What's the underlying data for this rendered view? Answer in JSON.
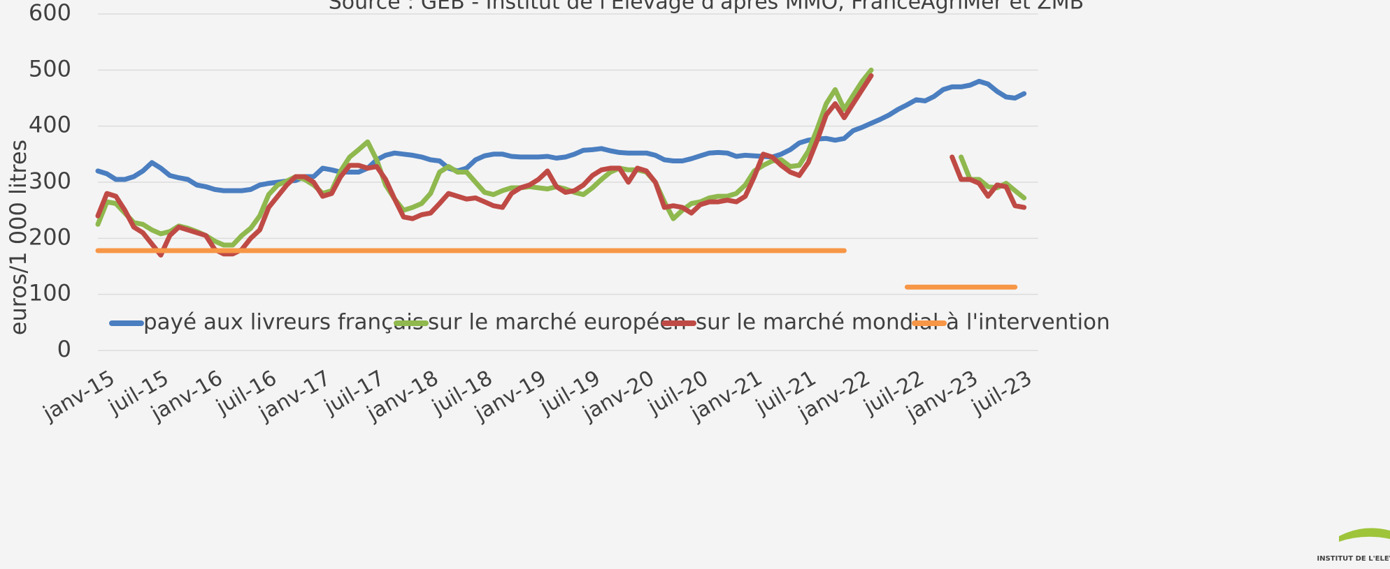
{
  "chart_data": {
    "type": "line",
    "subtitle": "Source : GEB - Institut de l'Elevage d'après MMO, FranceAgriMer et ZMB",
    "y_label": "euros/1 000 litres",
    "logo": "INSTITUT DE L'ELEVAGE",
    "ylim": [
      0,
      600
    ],
    "yticks": [
      0,
      100,
      200,
      300,
      400,
      500,
      600
    ],
    "grid": true,
    "legend": "inside-bottom",
    "categories": [
      "janv-15",
      null,
      null,
      null,
      null,
      null,
      "juil-15",
      null,
      null,
      null,
      null,
      null,
      "janv-16",
      null,
      null,
      null,
      null,
      null,
      "juil-16",
      null,
      null,
      null,
      null,
      null,
      "janv-17",
      null,
      null,
      null,
      null,
      null,
      "juil-17",
      null,
      null,
      null,
      null,
      null,
      "janv-18",
      null,
      null,
      null,
      null,
      null,
      "juil-18",
      null,
      null,
      null,
      null,
      null,
      "janv-19",
      null,
      null,
      null,
      null,
      null,
      "juil-19",
      null,
      null,
      null,
      null,
      null,
      "janv-20",
      null,
      null,
      null,
      null,
      null,
      "juil-20",
      null,
      null,
      null,
      null,
      null,
      "janv-21",
      null,
      null,
      null,
      null,
      null,
      "juil-21",
      null,
      null,
      null,
      null,
      null,
      "janv-22",
      null,
      null,
      null,
      null,
      null,
      "juil-22",
      null,
      null,
      null,
      null,
      null,
      "janv-23",
      null,
      null,
      null,
      null,
      null,
      "juil-23",
      null
    ],
    "series": [
      {
        "name": "payé aux livreurs français",
        "color": "#4a7ec0",
        "values": [
          320,
          315,
          305,
          305,
          310,
          320,
          335,
          325,
          312,
          308,
          305,
          295,
          292,
          287,
          285,
          285,
          285,
          287,
          295,
          298,
          300,
          302,
          303,
          310,
          310,
          325,
          322,
          318,
          318,
          318,
          325,
          340,
          348,
          352,
          350,
          348,
          345,
          340,
          338,
          325,
          320,
          325,
          340,
          347,
          350,
          350,
          346,
          345,
          345,
          345,
          346,
          343,
          345,
          350,
          357,
          358,
          360,
          356,
          353,
          352,
          352,
          352,
          348,
          340,
          338,
          338,
          342,
          347,
          352,
          353,
          352,
          346,
          348,
          347,
          346,
          345,
          350,
          358,
          370,
          375,
          377,
          378,
          375,
          378,
          392,
          398,
          405,
          412,
          420,
          430,
          438,
          447,
          445,
          453,
          465,
          470,
          470,
          473,
          480,
          475,
          462,
          452,
          450,
          458
        ]
      },
      {
        "name": "sur le marché européen",
        "color": "#8fb84e",
        "values": [
          225,
          265,
          262,
          245,
          228,
          225,
          215,
          208,
          212,
          222,
          218,
          212,
          205,
          195,
          188,
          188,
          205,
          218,
          240,
          278,
          295,
          302,
          310,
          305,
          295,
          280,
          285,
          320,
          345,
          358,
          372,
          340,
          295,
          270,
          250,
          255,
          262,
          280,
          318,
          328,
          318,
          318,
          300,
          282,
          278,
          285,
          290,
          290,
          292,
          290,
          288,
          292,
          288,
          282,
          278,
          290,
          305,
          318,
          325,
          322,
          322,
          318,
          300,
          265,
          235,
          250,
          262,
          265,
          272,
          275,
          275,
          280,
          295,
          320,
          330,
          338,
          340,
          328,
          330,
          355,
          395,
          440,
          465,
          430,
          455,
          480,
          500,
          null,
          null,
          null,
          null,
          null,
          null,
          null,
          null,
          null,
          345,
          305,
          305,
          292,
          290,
          298,
          285,
          272
        ]
      },
      {
        "name": "sur le marché mondial",
        "color": "#bf4a45",
        "values": [
          240,
          280,
          275,
          250,
          220,
          210,
          190,
          170,
          205,
          220,
          215,
          210,
          205,
          180,
          172,
          172,
          180,
          200,
          215,
          255,
          275,
          295,
          310,
          310,
          300,
          275,
          280,
          310,
          330,
          330,
          325,
          328,
          305,
          270,
          238,
          235,
          242,
          245,
          262,
          280,
          275,
          270,
          272,
          265,
          258,
          255,
          280,
          290,
          295,
          305,
          320,
          292,
          282,
          285,
          295,
          312,
          322,
          325,
          325,
          300,
          325,
          320,
          300,
          255,
          258,
          255,
          245,
          260,
          265,
          265,
          268,
          265,
          275,
          310,
          350,
          345,
          330,
          318,
          312,
          335,
          375,
          420,
          440,
          415,
          440,
          465,
          490,
          null,
          null,
          null,
          null,
          null,
          null,
          null,
          null,
          345,
          305,
          305,
          298,
          275,
          295,
          292,
          258,
          255
        ]
      },
      {
        "name": "à l'intervention",
        "color": "#f79646",
        "values": [
          178,
          178,
          178,
          178,
          178,
          178,
          178,
          178,
          178,
          178,
          178,
          178,
          178,
          178,
          178,
          178,
          178,
          178,
          178,
          178,
          178,
          178,
          178,
          178,
          178,
          178,
          178,
          178,
          178,
          178,
          178,
          178,
          178,
          178,
          178,
          178,
          178,
          178,
          178,
          178,
          178,
          178,
          178,
          178,
          178,
          178,
          178,
          178,
          178,
          178,
          178,
          178,
          178,
          178,
          178,
          178,
          178,
          178,
          178,
          178,
          178,
          178,
          178,
          178,
          178,
          178,
          178,
          178,
          178,
          178,
          178,
          178,
          178,
          178,
          178,
          178,
          178,
          178,
          178,
          178,
          178,
          178,
          178,
          178,
          null,
          null,
          null,
          null,
          null,
          null,
          113,
          113,
          113,
          113,
          113,
          113,
          113,
          113,
          113,
          113,
          113,
          113,
          113,
          null
        ]
      }
    ]
  }
}
